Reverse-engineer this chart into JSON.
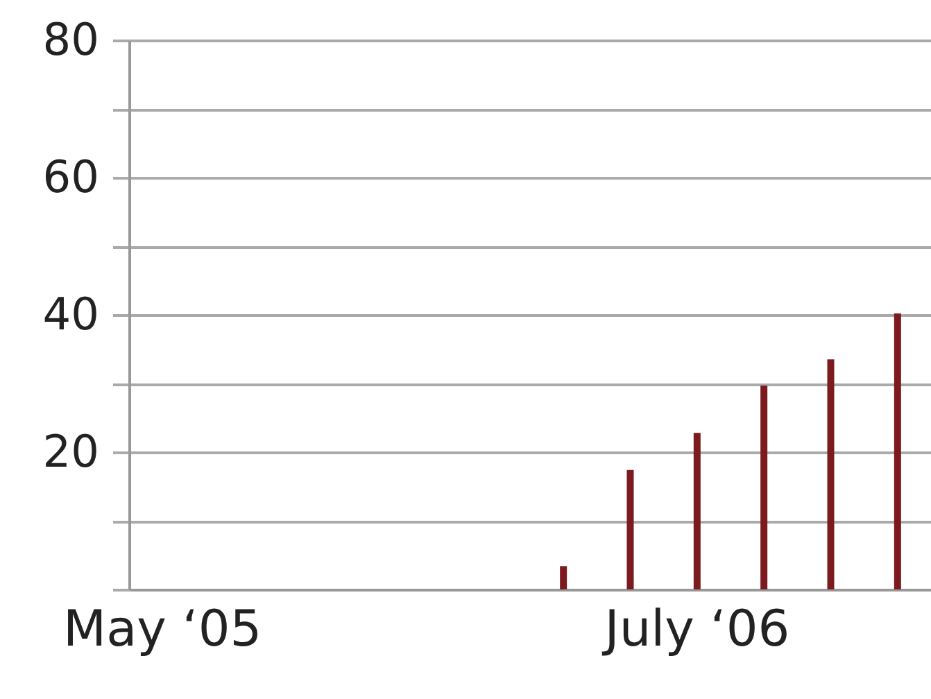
{
  "chart_data": {
    "type": "bar",
    "categories": [
      "May ‘05",
      null,
      null,
      null,
      null,
      null,
      null,
      null,
      "July ‘06",
      null,
      null,
      null
    ],
    "values": [
      null,
      null,
      null,
      null,
      null,
      null,
      3.4,
      17.4,
      22.8,
      29.7,
      33.5,
      40.2
    ],
    "color": "#7b1a1f",
    "ylim": [
      0,
      80
    ],
    "yticks": [
      {
        "value": 0,
        "label": null
      },
      {
        "value": 10,
        "label": null
      },
      20,
      {
        "value": 30,
        "label": null
      },
      40,
      {
        "value": 50,
        "label": null
      },
      60,
      {
        "value": 70,
        "label": null
      },
      80
    ],
    "grid": "y"
  }
}
